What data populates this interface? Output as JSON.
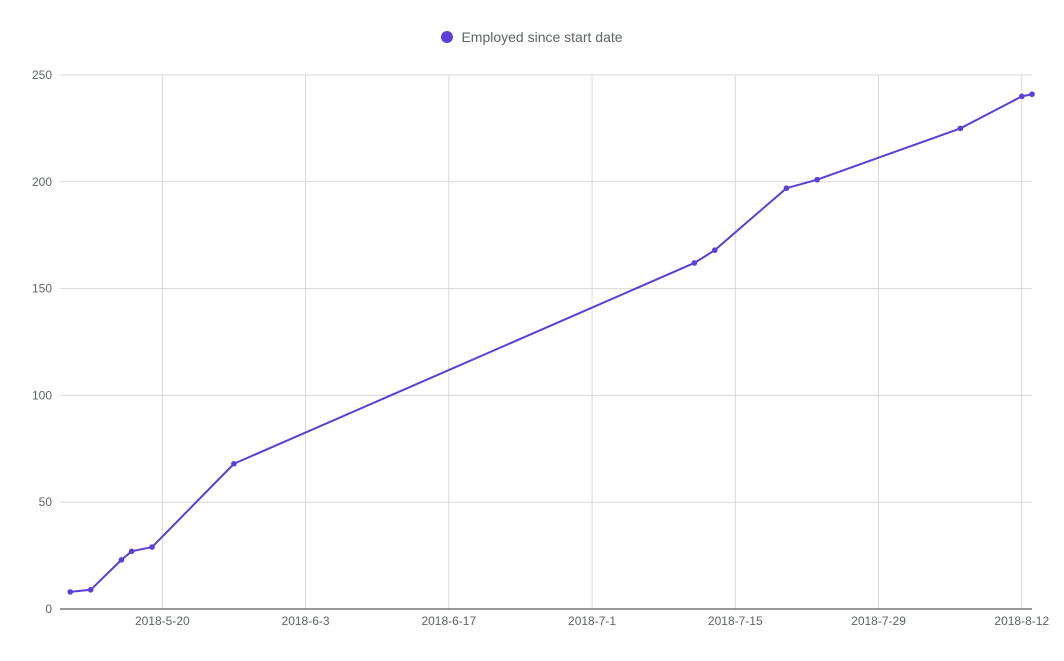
{
  "chart_data": {
    "type": "line",
    "legend": {
      "position": "top",
      "entries": [
        "Employed since start date"
      ]
    },
    "series": [
      {
        "name": "Employed since start date",
        "color": "#5b3fd6",
        "points": [
          {
            "x": "2018-05-11",
            "y": 8
          },
          {
            "x": "2018-05-13",
            "y": 9
          },
          {
            "x": "2018-05-16",
            "y": 23
          },
          {
            "x": "2018-05-17",
            "y": 27
          },
          {
            "x": "2018-05-19",
            "y": 29
          },
          {
            "x": "2018-05-27",
            "y": 68
          },
          {
            "x": "2018-07-11",
            "y": 162
          },
          {
            "x": "2018-07-13",
            "y": 168
          },
          {
            "x": "2018-07-20",
            "y": 197
          },
          {
            "x": "2018-07-23",
            "y": 201
          },
          {
            "x": "2018-08-06",
            "y": 225
          },
          {
            "x": "2018-08-12",
            "y": 240
          },
          {
            "x": "2018-08-13",
            "y": 241
          }
        ]
      }
    ],
    "x_ticks": [
      "2018-5-20",
      "2018-6-3",
      "2018-6-17",
      "2018-7-1",
      "2018-7-15",
      "2018-7-29",
      "2018-8-12"
    ],
    "x_tick_dates": [
      "2018-05-20",
      "2018-06-03",
      "2018-06-17",
      "2018-07-01",
      "2018-07-15",
      "2018-07-29",
      "2018-08-12"
    ],
    "xlim": [
      "2018-05-10",
      "2018-08-13"
    ],
    "y_ticks": [
      0,
      50,
      100,
      150,
      200,
      250
    ],
    "ylim": [
      0,
      250
    ],
    "grid": true,
    "title": "",
    "xlabel": "",
    "ylabel": ""
  }
}
